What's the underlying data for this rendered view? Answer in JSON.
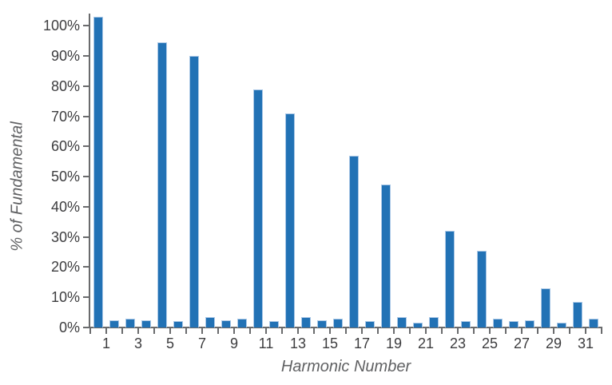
{
  "chart_data": {
    "type": "bar",
    "title": "",
    "xlabel": "Harmonic Number",
    "ylabel": "% of Fundamental",
    "x": [
      1,
      2,
      3,
      4,
      5,
      6,
      7,
      8,
      9,
      10,
      11,
      12,
      13,
      14,
      15,
      16,
      17,
      18,
      19,
      20,
      21,
      22,
      23,
      24,
      25,
      26,
      27,
      28,
      29,
      30,
      31,
      32
    ],
    "values": [
      103,
      2.5,
      3,
      2.5,
      94.5,
      2,
      90,
      3.5,
      2.5,
      3,
      79,
      2,
      71,
      3.5,
      2.5,
      3,
      57,
      2,
      47.5,
      3.5,
      1.5,
      3.5,
      32,
      2,
      25.5,
      3,
      2,
      2.5,
      13,
      1.5,
      8.5,
      3
    ],
    "ylim": [
      0,
      104
    ],
    "y_tick_values": [
      0,
      10,
      20,
      30,
      40,
      50,
      60,
      70,
      80,
      90,
      100
    ],
    "y_tick_labels": [
      "0%",
      "10%",
      "20%",
      "30%",
      "40%",
      "50%",
      "60%",
      "70%",
      "80%",
      "90%",
      "100%"
    ],
    "x_label_positions": [
      1,
      3,
      5,
      7,
      9,
      11,
      13,
      15,
      17,
      19,
      21,
      23,
      25,
      27,
      29,
      31
    ],
    "x_tick_labels": [
      "1",
      "3",
      "5",
      "7",
      "9",
      "11",
      "13",
      "15",
      "17",
      "19",
      "21",
      "23",
      "25",
      "27",
      "29",
      "31"
    ],
    "grid": false,
    "legend": null,
    "colors": {
      "bar_fill": "#2272b5",
      "bar_edge": "#a9c7e6",
      "axis": "#6a6b6d",
      "tick_label": "#3d3d3f",
      "axis_title": "#606163"
    }
  }
}
